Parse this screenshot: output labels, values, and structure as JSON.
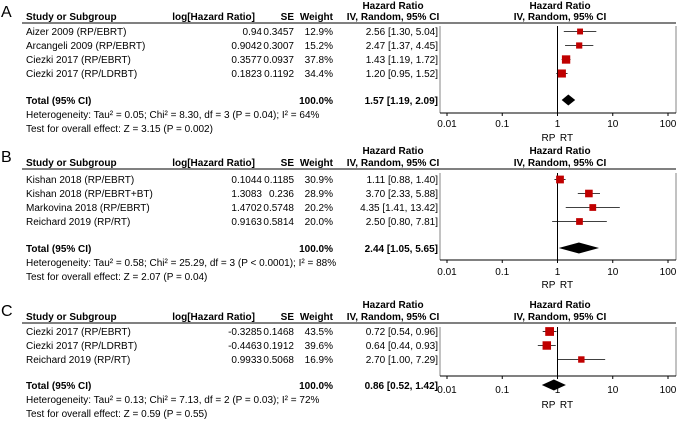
{
  "colors": {
    "marker": "#c00000",
    "ink": "#000000",
    "background": "#ffffff"
  },
  "headers": {
    "study": "Study or Subgroup",
    "loghr": "log[Hazard Ratio]",
    "se": "SE",
    "weight": "Weight",
    "hr_title": "Hazard Ratio",
    "hr_sub": "IV, Random, 95% CI"
  },
  "axis": {
    "ticks": [
      {
        "value": 0.01,
        "label": "0.01"
      },
      {
        "value": 0.1,
        "label": "0.1"
      },
      {
        "value": 1,
        "label": "1"
      },
      {
        "value": 10,
        "label": "10"
      },
      {
        "value": 100,
        "label": "100"
      }
    ],
    "favours_left": "RP",
    "favours_right": "RT"
  },
  "chart_data": [
    {
      "type": "forest",
      "panel_label": "A",
      "xscale": "log",
      "xlim": [
        0.01,
        100
      ],
      "studies": [
        {
          "name": "Aizer 2009 (RP/EBRT)",
          "loghr": "0.94",
          "se": "0.3457",
          "weight": "12.9%",
          "weight_pct": 12.9,
          "hr": 2.56,
          "lo": 1.3,
          "hi": 5.04,
          "ci_text": "2.56 [1.30, 5.04]"
        },
        {
          "name": "Arcangeli 2009 (RP/EBRT)",
          "loghr": "0.9042",
          "se": "0.3007",
          "weight": "15.2%",
          "weight_pct": 15.2,
          "hr": 2.47,
          "lo": 1.37,
          "hi": 4.45,
          "ci_text": "2.47 [1.37, 4.45]"
        },
        {
          "name": "Ciezki 2017 (RP/EBRT)",
          "loghr": "0.3577",
          "se": "0.0937",
          "weight": "37.8%",
          "weight_pct": 37.8,
          "hr": 1.43,
          "lo": 1.19,
          "hi": 1.72,
          "ci_text": "1.43 [1.19, 1.72]"
        },
        {
          "name": "Ciezki 2017 (RP/LDRBT)",
          "loghr": "0.1823",
          "se": "0.1192",
          "weight": "34.4%",
          "weight_pct": 34.4,
          "hr": 1.2,
          "lo": 0.95,
          "hi": 1.52,
          "ci_text": "1.20 [0.95, 1.52]"
        }
      ],
      "total": {
        "label": "Total (95% CI)",
        "weight": "100.0%",
        "hr": 1.57,
        "lo": 1.19,
        "hi": 2.09,
        "ci_text": "1.57 [1.19, 2.09]"
      },
      "heterogeneity": "Heterogeneity: Tau² = 0.05; Chi² = 8.30, df = 3 (P = 0.04); I² = 64%",
      "overall_effect": "Test for overall effect: Z = 3.15 (P = 0.002)"
    },
    {
      "type": "forest",
      "panel_label": "B",
      "xscale": "log",
      "xlim": [
        0.01,
        100
      ],
      "studies": [
        {
          "name": "Kishan 2018 (RP/EBRT)",
          "loghr": "0.1044",
          "se": "0.1185",
          "weight": "30.9%",
          "weight_pct": 30.9,
          "hr": 1.11,
          "lo": 0.88,
          "hi": 1.4,
          "ci_text": "1.11 [0.88, 1.40]"
        },
        {
          "name": "Kishan 2018 (RP/EBRT+BT)",
          "loghr": "1.3083",
          "se": "0.236",
          "weight": "28.9%",
          "weight_pct": 28.9,
          "hr": 3.7,
          "lo": 2.33,
          "hi": 5.88,
          "ci_text": "3.70 [2.33, 5.88]"
        },
        {
          "name": "Markovina 2018 (RP/EBRT)",
          "loghr": "1.4702",
          "se": "0.5748",
          "weight": "20.2%",
          "weight_pct": 20.2,
          "hr": 4.35,
          "lo": 1.41,
          "hi": 13.42,
          "ci_text": "4.35 [1.41, 13.42]"
        },
        {
          "name": "Reichard 2019 (RP/RT)",
          "loghr": "0.9163",
          "se": "0.5814",
          "weight": "20.0%",
          "weight_pct": 20.0,
          "hr": 2.5,
          "lo": 0.8,
          "hi": 7.81,
          "ci_text": "2.50 [0.80, 7.81]"
        }
      ],
      "total": {
        "label": "Total (95% CI)",
        "weight": "100.0%",
        "hr": 2.44,
        "lo": 1.05,
        "hi": 5.65,
        "ci_text": "2.44 [1.05, 5.65]"
      },
      "heterogeneity": "Heterogeneity: Tau² = 0.58; Chi² = 25.29, df = 3 (P < 0.0001); I² = 88%",
      "overall_effect": "Test for overall effect: Z = 2.07 (P = 0.04)"
    },
    {
      "type": "forest",
      "panel_label": "C",
      "xscale": "log",
      "xlim": [
        0.01,
        100
      ],
      "studies": [
        {
          "name": "Ciezki 2017 (RP/EBRT)",
          "loghr": "-0.3285",
          "se": "0.1468",
          "weight": "43.5%",
          "weight_pct": 43.5,
          "hr": 0.72,
          "lo": 0.54,
          "hi": 0.96,
          "ci_text": "0.72 [0.54, 0.96]"
        },
        {
          "name": "Ciezki 2017 (RP/LDRBT)",
          "loghr": "-0.4463",
          "se": "0.1912",
          "weight": "39.6%",
          "weight_pct": 39.6,
          "hr": 0.64,
          "lo": 0.44,
          "hi": 0.93,
          "ci_text": "0.64 [0.44, 0.93]"
        },
        {
          "name": "Reichard 2019 (RP/RT)",
          "loghr": "0.9933",
          "se": "0.5068",
          "weight": "16.9%",
          "weight_pct": 16.9,
          "hr": 2.7,
          "lo": 1.0,
          "hi": 7.29,
          "ci_text": "2.70 [1.00, 7.29]"
        }
      ],
      "total": {
        "label": "Total (95% CI)",
        "weight": "100.0%",
        "hr": 0.86,
        "lo": 0.52,
        "hi": 1.42,
        "ci_text": "0.86 [0.52, 1.42]"
      },
      "heterogeneity": "Heterogeneity: Tau² = 0.13; Chi² = 7.13, df = 2 (P = 0.03); I² = 72%",
      "overall_effect": "Test for overall effect: Z = 0.59 (P = 0.55)"
    }
  ]
}
